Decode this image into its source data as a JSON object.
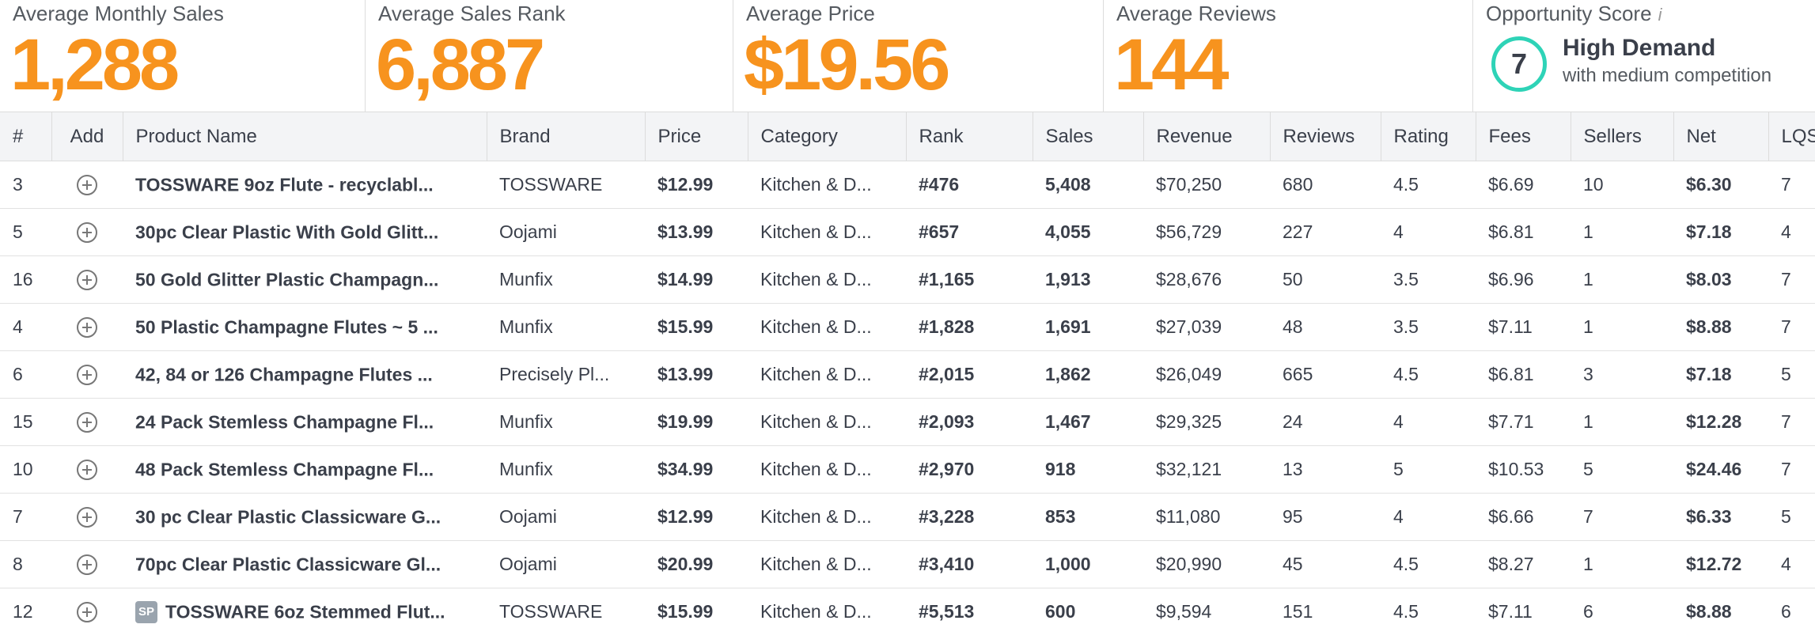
{
  "stats": {
    "avg_monthly_sales": {
      "label": "Average Monthly Sales",
      "value": "1,288"
    },
    "avg_sales_rank": {
      "label": "Average Sales Rank",
      "value": "6,887"
    },
    "avg_price": {
      "label": "Average Price",
      "value": "$19.56"
    },
    "avg_reviews": {
      "label": "Average Reviews",
      "value": "144"
    },
    "opportunity": {
      "label": "Opportunity Score",
      "info": "i",
      "score": "7",
      "title": "High Demand",
      "subtitle": "with medium competition"
    }
  },
  "table": {
    "headers": {
      "num": "#",
      "add": "Add",
      "name": "Product Name",
      "brand": "Brand",
      "price": "Price",
      "category": "Category",
      "rank": "Rank",
      "sales": "Sales",
      "revenue": "Revenue",
      "reviews": "Reviews",
      "rating": "Rating",
      "fees": "Fees",
      "sellers": "Sellers",
      "net": "Net",
      "lqs": "LQS"
    },
    "rows": [
      {
        "num": "3",
        "name": "TOSSWARE 9oz Flute - recyclabl...",
        "brand": "TOSSWARE",
        "price": "$12.99",
        "category": "Kitchen & D...",
        "rank": "#476",
        "sales": "5,408",
        "revenue": "$70,250",
        "reviews": "680",
        "rating": "4.5",
        "fees": "$6.69",
        "sellers": "10",
        "net": "$6.30",
        "lqs": "7"
      },
      {
        "num": "5",
        "name": "30pc Clear Plastic With Gold Glitt...",
        "brand": "Oojami",
        "price": "$13.99",
        "category": "Kitchen & D...",
        "rank": "#657",
        "sales": "4,055",
        "revenue": "$56,729",
        "reviews": "227",
        "rating": "4",
        "fees": "$6.81",
        "sellers": "1",
        "net": "$7.18",
        "lqs": "4"
      },
      {
        "num": "16",
        "name": "50 Gold Glitter Plastic Champagn...",
        "brand": "Munfix",
        "price": "$14.99",
        "category": "Kitchen & D...",
        "rank": "#1,165",
        "sales": "1,913",
        "revenue": "$28,676",
        "reviews": "50",
        "rating": "3.5",
        "fees": "$6.96",
        "sellers": "1",
        "net": "$8.03",
        "lqs": "7"
      },
      {
        "num": "4",
        "name": "50 Plastic Champagne Flutes ~ 5 ...",
        "brand": "Munfix",
        "price": "$15.99",
        "category": "Kitchen & D...",
        "rank": "#1,828",
        "sales": "1,691",
        "revenue": "$27,039",
        "reviews": "48",
        "rating": "3.5",
        "fees": "$7.11",
        "sellers": "1",
        "net": "$8.88",
        "lqs": "7"
      },
      {
        "num": "6",
        "name": "42, 84 or 126 Champagne Flutes ...",
        "brand": "Precisely Pl...",
        "price": "$13.99",
        "category": "Kitchen & D...",
        "rank": "#2,015",
        "sales": "1,862",
        "revenue": "$26,049",
        "reviews": "665",
        "rating": "4.5",
        "fees": "$6.81",
        "sellers": "3",
        "net": "$7.18",
        "lqs": "5"
      },
      {
        "num": "15",
        "name": "24 Pack Stemless Champagne Fl...",
        "brand": "Munfix",
        "price": "$19.99",
        "category": "Kitchen & D...",
        "rank": "#2,093",
        "sales": "1,467",
        "revenue": "$29,325",
        "reviews": "24",
        "rating": "4",
        "fees": "$7.71",
        "sellers": "1",
        "net": "$12.28",
        "lqs": "7"
      },
      {
        "num": "10",
        "name": "48 Pack Stemless Champagne Fl...",
        "brand": "Munfix",
        "price": "$34.99",
        "category": "Kitchen & D...",
        "rank": "#2,970",
        "sales": "918",
        "revenue": "$32,121",
        "reviews": "13",
        "rating": "5",
        "fees": "$10.53",
        "sellers": "5",
        "net": "$24.46",
        "lqs": "7"
      },
      {
        "num": "7",
        "name": "30 pc Clear Plastic Classicware G...",
        "brand": "Oojami",
        "price": "$12.99",
        "category": "Kitchen & D...",
        "rank": "#3,228",
        "sales": "853",
        "revenue": "$11,080",
        "reviews": "95",
        "rating": "4",
        "fees": "$6.66",
        "sellers": "7",
        "net": "$6.33",
        "lqs": "5"
      },
      {
        "num": "8",
        "name": "70pc Clear Plastic Classicware Gl...",
        "brand": "Oojami",
        "price": "$20.99",
        "category": "Kitchen & D...",
        "rank": "#3,410",
        "sales": "1,000",
        "revenue": "$20,990",
        "reviews": "45",
        "rating": "4.5",
        "fees": "$8.27",
        "sellers": "1",
        "net": "$12.72",
        "lqs": "4"
      },
      {
        "num": "12",
        "badge": "SP",
        "name": "TOSSWARE 6oz Stemmed Flut...",
        "brand": "TOSSWARE",
        "price": "$15.99",
        "category": "Kitchen & D...",
        "rank": "#5,513",
        "sales": "600",
        "revenue": "$9,594",
        "reviews": "151",
        "rating": "4.5",
        "fees": "$7.11",
        "sellers": "6",
        "net": "$8.88",
        "lqs": "6"
      }
    ]
  }
}
